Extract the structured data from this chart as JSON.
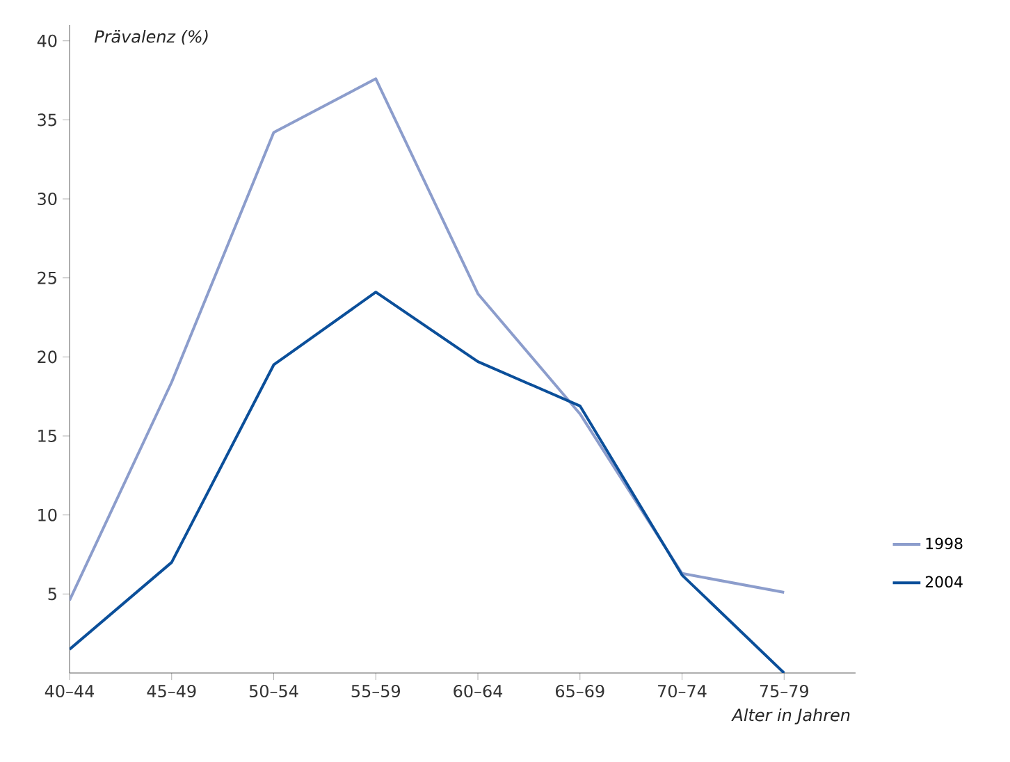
{
  "chart_data": {
    "type": "line",
    "ylabel": "Prävalenz (%)",
    "xlabel": "Alter in Jahren",
    "categories": [
      "40–44",
      "45–49",
      "50–54",
      "55–59",
      "60–64",
      "65–69",
      "70–74",
      "75–79"
    ],
    "ylim": [
      0,
      41
    ],
    "yticks": [
      5,
      10,
      15,
      20,
      25,
      30,
      35,
      40
    ],
    "legend": "right",
    "grid": false,
    "series": [
      {
        "name": "1998",
        "color": "#8c9dcc",
        "values": [
          4.6,
          18.4,
          34.2,
          37.6,
          24.0,
          16.4,
          6.3,
          5.1
        ]
      },
      {
        "name": "2004",
        "color": "#0b4f9a",
        "values": [
          1.5,
          7.0,
          19.5,
          24.1,
          19.7,
          16.9,
          6.2,
          0
        ]
      }
    ]
  }
}
